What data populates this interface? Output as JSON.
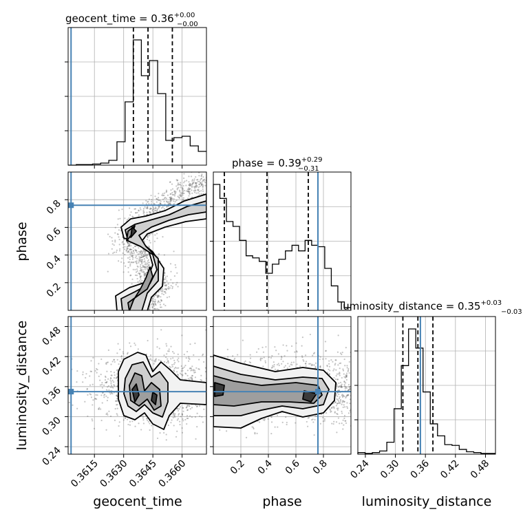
{
  "chart_data": {
    "type": "corner",
    "grid": true,
    "truth_color": "#4682b4",
    "parameters": [
      {
        "name": "geocent_time",
        "label": "geocent_time",
        "range": [
          0.36015,
          0.36725
        ],
        "ticks": [
          {
            "v": 0.3615,
            "label": "0.3615"
          },
          {
            "v": 0.363,
            "label": "0.3630"
          },
          {
            "v": 0.3645,
            "label": "0.3645"
          },
          {
            "v": 0.366,
            "label": "0.3660"
          }
        ],
        "title": "geocent_time = 0.36",
        "title_sup": "+0.00",
        "title_sub": "−0.00",
        "truth": 0.3603,
        "quantiles": [
          0.3635,
          0.36425,
          0.3655
        ],
        "hist": [
          0.0,
          0.4,
          0.4,
          0.8,
          1.5,
          3.5,
          17,
          46,
          91,
          65,
          76,
          52,
          18,
          20,
          21,
          14,
          10
        ]
      },
      {
        "name": "phase",
        "label": "phase",
        "range": [
          0.0,
          1.0
        ],
        "ticks": [
          {
            "v": 0.2,
            "label": "0.2"
          },
          {
            "v": 0.4,
            "label": "0.4"
          },
          {
            "v": 0.6,
            "label": "0.6"
          },
          {
            "v": 0.8,
            "label": "0.8"
          }
        ],
        "title": "phase = 0.39",
        "title_sup": "+0.29",
        "title_sub": "−0.31",
        "truth": 0.76,
        "quantiles": [
          0.08,
          0.39,
          0.69
        ],
        "hist": [
          180,
          160,
          127,
          120,
          100,
          78,
          75,
          70,
          53,
          66,
          73,
          85,
          93,
          85,
          100,
          93,
          91,
          60,
          35,
          12,
          4
        ]
      },
      {
        "name": "luminosity_distance",
        "label": "luminosity_distance",
        "range": [
          0.225,
          0.5
        ],
        "ticks": [
          {
            "v": 0.24,
            "label": "0.24"
          },
          {
            "v": 0.3,
            "label": "0.30"
          },
          {
            "v": 0.36,
            "label": "0.36"
          },
          {
            "v": 0.42,
            "label": "0.42"
          },
          {
            "v": 0.48,
            "label": "0.48"
          }
        ],
        "title": "luminosity_distance = 0.35",
        "title_sup": "+0.03",
        "title_sub": "−0.03",
        "truth": 0.35,
        "quantiles": [
          0.315,
          0.345,
          0.375
        ],
        "hist": [
          2,
          1,
          2,
          4,
          15,
          57,
          111,
          157,
          133,
          78,
          38,
          23,
          12,
          11,
          6,
          3,
          2,
          1,
          1
        ]
      }
    ]
  }
}
